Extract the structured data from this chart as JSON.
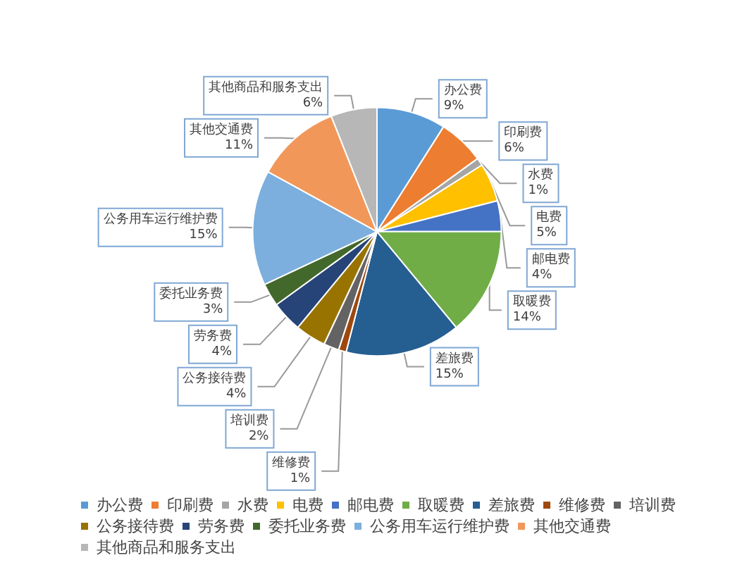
{
  "chart_data": {
    "type": "pie",
    "categories": [
      "办公费",
      "印刷费",
      "水费",
      "电费",
      "邮电费",
      "取暖费",
      "差旅费",
      "维修费",
      "培训费",
      "公务接待费",
      "劳务费",
      "委托业务费",
      "公务用车运行维护费",
      "其他交通费",
      "其他商品和服务支出"
    ],
    "values": [
      9,
      6,
      1,
      5,
      4,
      14,
      15,
      1,
      2,
      4,
      4,
      3,
      15,
      11,
      6
    ],
    "colors": [
      "#5b9bd5",
      "#ed7d31",
      "#a5a5a5",
      "#ffc000",
      "#4472c4",
      "#70ad47",
      "#255e91",
      "#9e480e",
      "#636363",
      "#997300",
      "#264478",
      "#43682b",
      "#7cafdd",
      "#f1975a",
      "#b7b7b7"
    ],
    "value_labels": [
      "9%",
      "6%",
      "1%",
      "5%",
      "4%",
      "14%",
      "15%",
      "1%",
      "2%",
      "4%",
      "4%",
      "3%",
      "15%",
      "11%",
      "6%"
    ],
    "legend": "bottom"
  }
}
